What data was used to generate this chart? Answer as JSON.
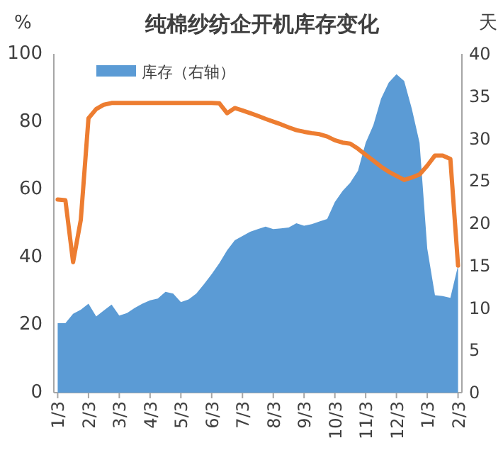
{
  "chart_data": {
    "type": "line",
    "title": "纯棉纱纺企开机库存变化",
    "ylabel": "%",
    "y2label": "天",
    "ylim": [
      0,
      100
    ],
    "yticks": [
      0,
      20,
      40,
      60,
      80,
      100
    ],
    "y2lim": [
      0,
      40
    ],
    "y2ticks": [
      0,
      5,
      10,
      15,
      20,
      25,
      30,
      35,
      40
    ],
    "categories": [
      "1/3",
      null,
      null,
      null,
      "2/3",
      null,
      null,
      null,
      "3/3",
      null,
      null,
      null,
      "4/3",
      null,
      null,
      null,
      "5/3",
      null,
      null,
      null,
      "6/3",
      null,
      null,
      null,
      "7/3",
      null,
      null,
      null,
      "8/3",
      null,
      null,
      null,
      "9/3",
      null,
      null,
      null,
      "10/3",
      null,
      null,
      null,
      "11/3",
      null,
      null,
      null,
      "12/3",
      null,
      null,
      null,
      "1/3",
      null,
      null,
      null,
      "2/3"
    ],
    "grid": false,
    "legend": "top left",
    "marker": "none",
    "series": [
      {
        "name": "库存（右轴）",
        "type": "area",
        "axis": "y2",
        "color": "#5b9bd5",
        "values": [
          8.2,
          8.2,
          9.3,
          9.8,
          10.5,
          9,
          9.7,
          10.4,
          9.1,
          9.4,
          10,
          10.5,
          10.9,
          11.1,
          11.9,
          11.7,
          10.7,
          11,
          11.7,
          12.8,
          14,
          15.3,
          16.8,
          18,
          18.5,
          19,
          19.3,
          19.6,
          19.3,
          19.4,
          19.5,
          20,
          19.7,
          19.9,
          20.2,
          20.5,
          22.5,
          23.8,
          24.8,
          26.2,
          29.5,
          31.6,
          34.7,
          36.6,
          37.6,
          36.8,
          33.5,
          29.5,
          17,
          11.5,
          11.4,
          11.2,
          15
        ]
      },
      {
        "axis": "y",
        "color": "#ed7d31",
        "values": [
          57,
          56.8,
          38.5,
          51,
          81,
          83.7,
          85,
          85.5,
          85.5,
          85.5,
          85.5,
          85.5,
          85.5,
          85.5,
          85.5,
          85.5,
          85.5,
          85.5,
          85.5,
          85.5,
          85.5,
          85.4,
          82.5,
          84,
          83.3,
          82.5,
          81.7,
          80.8,
          80,
          79.2,
          78.3,
          77.5,
          77,
          76.6,
          76.3,
          75.6,
          74.5,
          73.8,
          73.5,
          72,
          70.2,
          68.5,
          66.7,
          65.2,
          64,
          62.8,
          63.5,
          64.4,
          67,
          70,
          70,
          69,
          37.5
        ]
      }
    ]
  }
}
